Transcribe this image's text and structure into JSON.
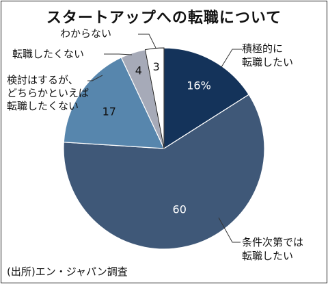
{
  "title": "スタートアップへの転職について",
  "source": "(出所)エン・ジャパン調査",
  "colors": {
    "background": "#ffffff",
    "border": "#1a1a1a",
    "leader": "#333333",
    "slice_stroke": "#ffffff"
  },
  "chart_data": {
    "type": "pie",
    "title": "スタートアップへの転職について",
    "unit": "%",
    "start": "12 o'clock",
    "direction": "clockwise",
    "slices": [
      {
        "name": "積極的に転職したい",
        "label_lines": [
          "積極的に",
          "転職したい"
        ],
        "value": 16,
        "value_text": "16%",
        "color": "#14335a",
        "text_color": "#ffffff"
      },
      {
        "name": "条件次第では転職したい",
        "label_lines": [
          "条件次第では",
          "転職したい"
        ],
        "value": 60,
        "value_text": "60",
        "color": "#3f5878",
        "text_color": "#ffffff"
      },
      {
        "name": "検討はするが、どちらかといえば転職したくない",
        "label_lines": [
          "検討はするが、",
          "どちらかといえば",
          "転職したくない"
        ],
        "value": 17,
        "value_text": "17",
        "color": "#5786ad",
        "text_color": "#111111"
      },
      {
        "name": "転職したくない",
        "label_lines": [
          "転職したくない"
        ],
        "value": 4,
        "value_text": "4",
        "color": "#a6aab8",
        "text_color": "#111111"
      },
      {
        "name": "わからない",
        "label_lines": [
          "わからない"
        ],
        "value": 3,
        "value_text": "3",
        "color": "#ffffff",
        "text_color": "#111111"
      }
    ]
  }
}
